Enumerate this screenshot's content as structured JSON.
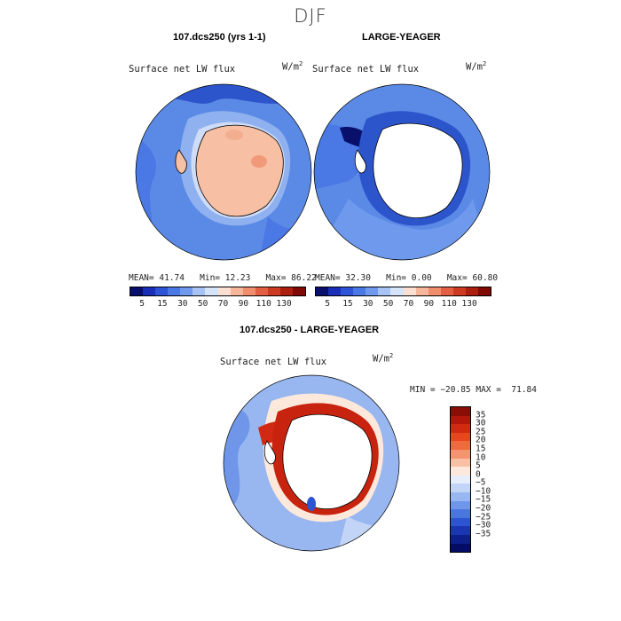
{
  "figure": {
    "season": "DJF"
  },
  "panels": {
    "left": {
      "title": "107.dcs250 (yrs 1-1)",
      "variable": "Surface net LW flux",
      "units_base": "W/m",
      "units_exp": "2",
      "mean_label": "MEAN=",
      "mean": "41.74",
      "min_label": "Min=",
      "min": "12.23",
      "max_label": "Max=",
      "max": "86.22"
    },
    "right": {
      "title": "LARGE-YEAGER",
      "variable": "Surface net LW flux",
      "units_base": "W/m",
      "units_exp": "2",
      "mean_label": "MEAN=",
      "mean": "32.30",
      "min_label": "Min=",
      "min": "0.00",
      "max_label": "Max=",
      "max": "60.80"
    },
    "diff": {
      "title": "107.dcs250 - LARGE-YEAGER",
      "variable": "Surface net LW flux",
      "units_base": "W/m",
      "units_exp": "2",
      "minmax": "MIN = −20.85 MAX =  71.84"
    }
  },
  "colorbar_top": {
    "labels": [
      "5",
      "15",
      "30",
      "50",
      "70",
      "90",
      "110",
      "130"
    ],
    "colors": [
      "#08106b",
      "#1a2fb8",
      "#2d54d6",
      "#4a78e4",
      "#6f99ec",
      "#a7c3f3",
      "#d6e4fa",
      "#fbe0d2",
      "#f7b69a",
      "#f08d6d",
      "#e35f43",
      "#cc3a22",
      "#ab1f0f",
      "#7f0a05"
    ]
  },
  "colorbar_diff": {
    "labels": [
      "35",
      "30",
      "25",
      "20",
      "15",
      "10",
      "5",
      "0",
      "−5",
      "−10",
      "−15",
      "−20",
      "−25",
      "−30",
      "−35"
    ],
    "colors": [
      "#8b0d06",
      "#b3160a",
      "#d22a12",
      "#e8461f",
      "#f06a40",
      "#f49470",
      "#f8c0a5",
      "#fde8dc",
      "#e6eefb",
      "#c3d5f6",
      "#98b6ef",
      "#6f96e8",
      "#4a76df",
      "#2d54d2",
      "#1a36b3",
      "#0d1f8a",
      "#040c66"
    ]
  },
  "colors": {
    "ocean_mid": "#5b8ae6",
    "ocean_dark": "#2c55cc",
    "land_warm": "#f7c0a4",
    "land_white": "#ffffff",
    "red_strong": "#c8230f"
  }
}
